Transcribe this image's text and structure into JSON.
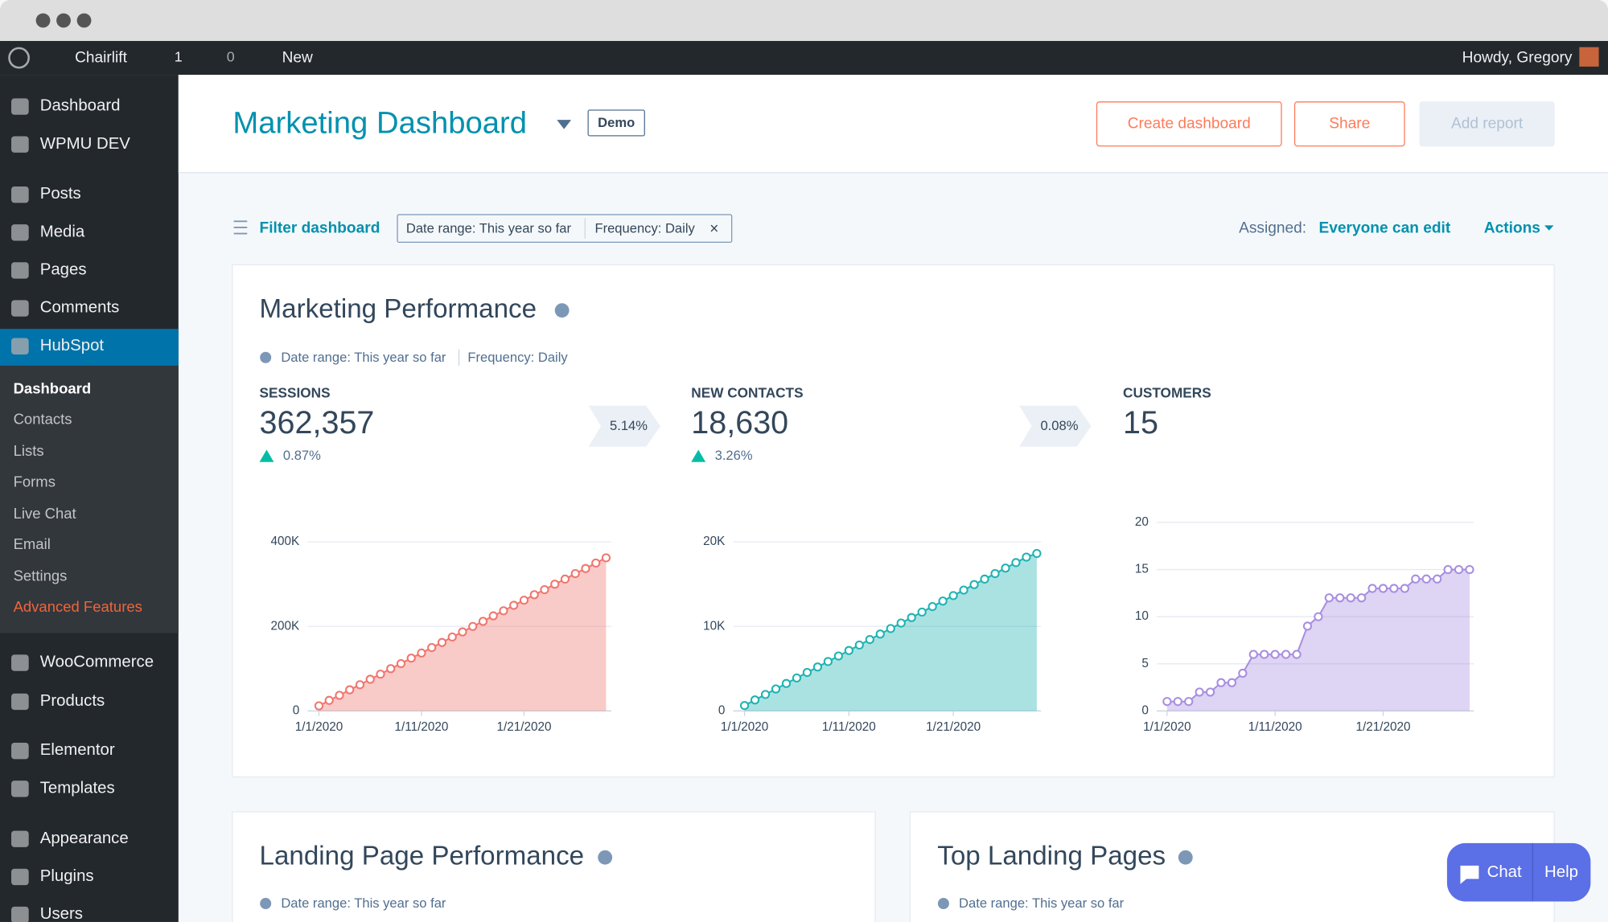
{
  "admin_bar": {
    "site": "Chairlift",
    "updates": "1",
    "comments": "0",
    "new": "New",
    "greeting": "Howdy, Gregory"
  },
  "sidebar": {
    "top": [
      "Dashboard",
      "WPMU DEV",
      "Posts",
      "Media",
      "Pages",
      "Comments",
      "HubSpot"
    ],
    "submenu": [
      "Dashboard",
      "Contacts",
      "Lists",
      "Forms",
      "Live Chat",
      "Email",
      "Settings",
      "Advanced Features"
    ],
    "bottom": [
      "WooCommerce",
      "Products",
      "Elementor",
      "Templates",
      "Appearance",
      "Plugins",
      "Users"
    ]
  },
  "header": {
    "title": "Marketing Dashboard",
    "badge": "Demo",
    "buttons": [
      "Create dashboard",
      "Share",
      "Add report"
    ]
  },
  "filters": {
    "filter": "Filter dashboard",
    "chips": [
      "Date range: This year so far",
      "Frequency: Daily"
    ],
    "assigned_label": "Assigned:",
    "assigned_value": "Everyone can edit",
    "actions": "Actions"
  },
  "performance": {
    "title": "Marketing Performance",
    "date_range": "Date range: This year so far",
    "frequency": "Frequency: Daily",
    "kpis": [
      {
        "label": "SESSIONS",
        "value": "362,357",
        "change": "0.87%"
      },
      {
        "label": "NEW CONTACTS",
        "value": "18,630",
        "change": "3.26%"
      },
      {
        "label": "CUSTOMERS",
        "value": "15"
      }
    ],
    "conversions": [
      "5.14%",
      "0.08%"
    ]
  },
  "chart_data": [
    {
      "type": "area",
      "color": "#f0766e",
      "categories": [
        "1/1/2020",
        null,
        null,
        null,
        null,
        null,
        null,
        null,
        null,
        null,
        "1/11/2020",
        null,
        null,
        null,
        null,
        null,
        null,
        null,
        null,
        null,
        "1/21/2020",
        null,
        null,
        null,
        null,
        null,
        null,
        null,
        null
      ],
      "values": [
        12000,
        25000,
        37000,
        50000,
        62000,
        75000,
        87000,
        100000,
        112000,
        125000,
        137000,
        150000,
        162000,
        175000,
        187000,
        200000,
        212000,
        225000,
        237000,
        250000,
        262000,
        275000,
        287000,
        300000,
        312000,
        325000,
        337000,
        350000,
        362357
      ],
      "ylim": [
        0,
        420000
      ],
      "yticks": [
        0,
        {
          "value": 200000,
          "label": "200K"
        },
        {
          "value": 400000,
          "label": "400K"
        }
      ],
      "grid": true
    },
    {
      "type": "area",
      "color": "#1fb3b3",
      "categories": [
        "1/1/2020",
        null,
        null,
        null,
        null,
        null,
        null,
        null,
        null,
        null,
        "1/11/2020",
        null,
        null,
        null,
        null,
        null,
        null,
        null,
        null,
        null,
        "1/21/2020",
        null,
        null,
        null,
        null,
        null,
        null,
        null,
        null
      ],
      "values": [
        640,
        1300,
        1950,
        2600,
        3250,
        3900,
        4550,
        5200,
        5850,
        6500,
        7150,
        7800,
        8450,
        9100,
        9750,
        10400,
        11050,
        11700,
        12350,
        13000,
        13650,
        14300,
        14950,
        15600,
        16250,
        16900,
        17550,
        18200,
        18630
      ],
      "ylim": [
        0,
        21000
      ],
      "yticks": [
        0,
        {
          "value": 10000,
          "label": "10K"
        },
        {
          "value": 20000,
          "label": "20K"
        }
      ],
      "grid": true
    },
    {
      "type": "area",
      "color": "#a88ee0",
      "categories": [
        "1/1/2020",
        null,
        null,
        null,
        null,
        null,
        null,
        null,
        null,
        null,
        "1/11/2020",
        null,
        null,
        null,
        null,
        null,
        null,
        null,
        null,
        null,
        "1/21/2020",
        null,
        null,
        null,
        null,
        null,
        null,
        null,
        null
      ],
      "values": [
        1,
        1,
        1,
        2,
        2,
        3,
        3,
        4,
        6,
        6,
        6,
        6,
        6,
        9,
        10,
        12,
        12,
        12,
        12,
        13,
        13,
        13,
        13,
        14,
        14,
        14,
        15,
        15,
        15
      ],
      "ylim": [
        0,
        20
      ],
      "yticks": [
        0,
        5,
        10,
        15,
        20
      ],
      "grid": true
    }
  ],
  "cards": [
    {
      "title": "Landing Page Performance",
      "date_range": "Date range: This year so far"
    },
    {
      "title": "Top Landing Pages",
      "date_range": "Date range: This year so far"
    }
  ],
  "chat": {
    "chat": "Chat",
    "help": "Help"
  }
}
